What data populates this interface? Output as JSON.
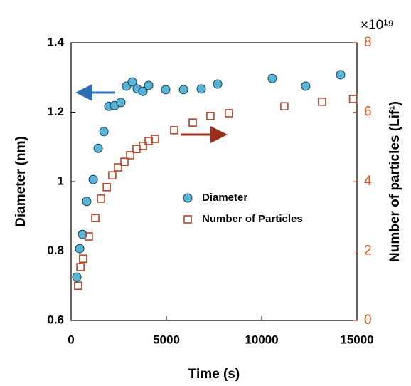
{
  "chart_data": {
    "type": "scatter",
    "xlabel": "Time (s)",
    "ylabel": "Diameter (nm)",
    "y2label": "Number of particles (Lif¹)",
    "y2multiplier": "×10¹⁹",
    "xlim": [
      0,
      15000
    ],
    "xticks": [
      0,
      5000,
      10000,
      15000
    ],
    "ylim": [
      0.6,
      1.4
    ],
    "yticks": [
      0.6,
      0.8,
      1,
      1.2,
      1.4
    ],
    "y2lim": [
      0,
      8
    ],
    "y2ticks": [
      0,
      2,
      4,
      6,
      8
    ],
    "y2color": "#d9541e",
    "series": [
      {
        "name": "Diameter",
        "marker": "circle",
        "color": "#56b4d9",
        "x": [
          300,
          450,
          600,
          820,
          1160,
          1420,
          1720,
          1980,
          2280,
          2610,
          2910,
          3210,
          3470,
          3770,
          4070,
          4960,
          5900,
          6830,
          7690,
          10560,
          12310,
          14140
        ],
        "values": [
          0.725,
          0.807,
          0.848,
          0.943,
          1.006,
          1.096,
          1.144,
          1.217,
          1.219,
          1.228,
          1.275,
          1.287,
          1.267,
          1.26,
          1.277,
          1.265,
          1.265,
          1.267,
          1.281,
          1.297,
          1.275,
          1.308
        ]
      },
      {
        "name": "Number of Particles",
        "marker": "square",
        "color": "#b5452a",
        "axis": "y2",
        "x": [
          370,
          490,
          630,
          930,
          1270,
          1570,
          1870,
          2160,
          2460,
          2800,
          3100,
          3430,
          3770,
          4070,
          4400,
          5410,
          6380,
          7310,
          8280,
          11190,
          13170,
          14800
        ],
        "values": [
          1.0,
          1.54,
          1.78,
          2.42,
          2.95,
          3.51,
          3.84,
          4.18,
          4.41,
          4.57,
          4.76,
          4.94,
          5.03,
          5.17,
          5.23,
          5.48,
          5.7,
          5.89,
          5.97,
          6.17,
          6.3,
          6.38
        ]
      }
    ]
  }
}
